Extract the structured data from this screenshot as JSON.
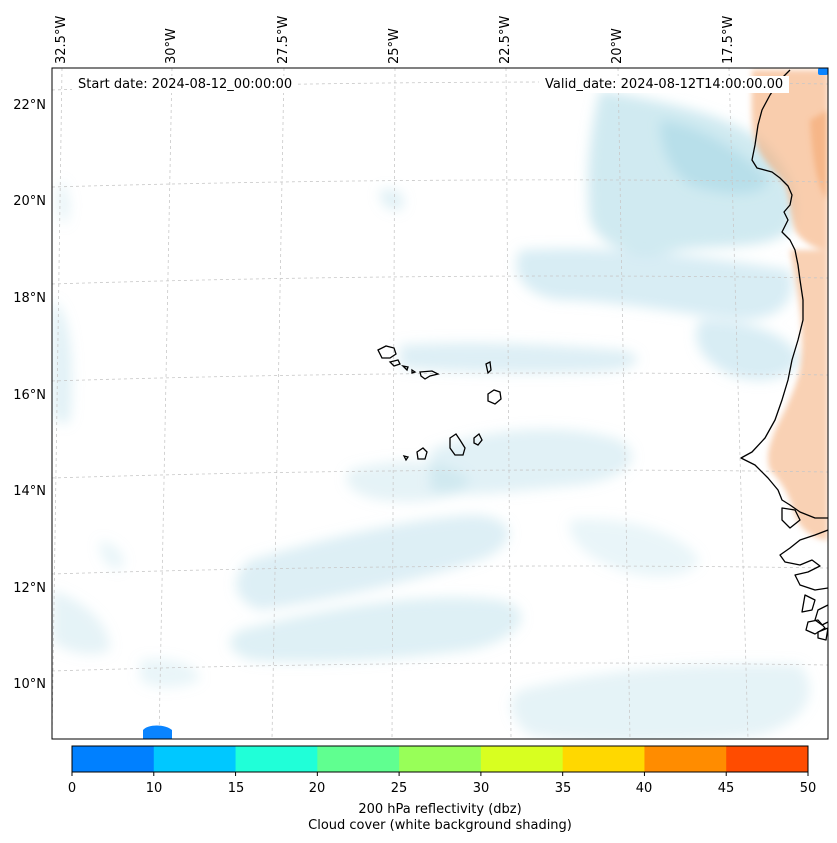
{
  "map": {
    "start_date": "Start date: 2024-08-12_00:00:00",
    "valid_date": "Valid_date: 2024-08-12T14:00:00.00",
    "latitude_labels": [
      "22°N",
      "20°N",
      "18°N",
      "16°N",
      "14°N",
      "12°N",
      "10°N"
    ],
    "longitude_labels": [
      "32.5°W",
      "30°W",
      "27.5°W",
      "25°W",
      "22.5°W",
      "20°W",
      "17.5°W"
    ],
    "region": "Cape Verde / West African coast"
  },
  "colorbar": {
    "ticks": [
      "0",
      "10",
      "15",
      "20",
      "25",
      "30",
      "35",
      "40",
      "45",
      "50"
    ],
    "colors": [
      "#0080ff",
      "#00c8ff",
      "#20ffd8",
      "#60ff90",
      "#98ff58",
      "#d8ff20",
      "#ffd800",
      "#ff8c00",
      "#ff4c00"
    ],
    "label": "200 hPa reflectivity (dbz)",
    "sublabel": "Cloud cover (white background shading)"
  },
  "colors": {
    "cloud": "#a9d8e6",
    "land_shading": "#f4a46a",
    "coastline": "#000000",
    "grid": "#c8c8c8",
    "echo": "#0a84ff"
  }
}
